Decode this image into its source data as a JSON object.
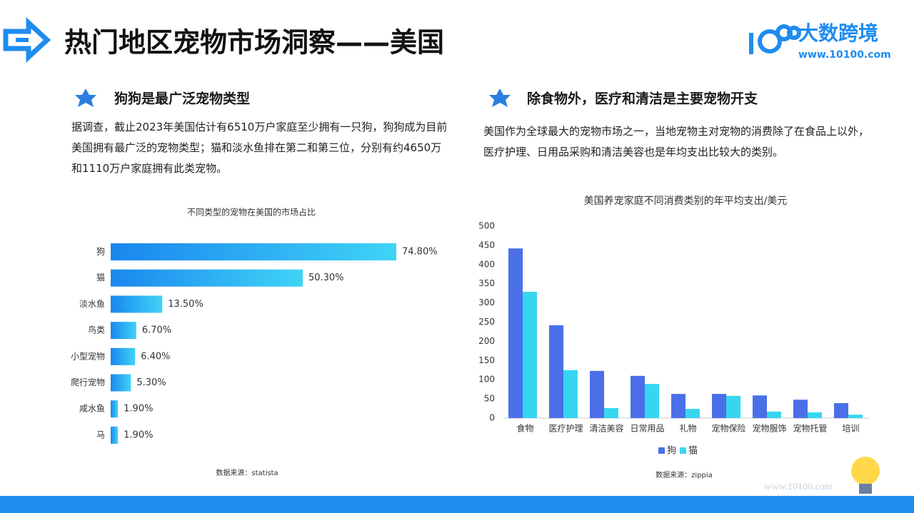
{
  "header": {
    "title": "热门地区宠物市场洞察——美国",
    "logo_name": "大数跨境",
    "logo_url": "www.10100.com",
    "watermark": "www.10100.com"
  },
  "sections": [
    {
      "heading": "狗狗是最广泛宠物类型",
      "body": "据调查，截止2023年美国估计有6510万户家庭至少拥有一只狗，狗狗成为目前美国拥有最广泛的宠物类型；猫和淡水鱼排在第二和第三位，分别有约4650万和1110万户家庭拥有此类宠物。"
    },
    {
      "heading": "除食物外，医疗和清洁是主要宠物开支",
      "body": "美国作为全球最大的宠物市场之一，当地宠物主对宠物的消费除了在食品上以外，医疗护理、日用品采购和清洁美容也是年均支出比较大的类别。"
    }
  ],
  "chart_data": [
    {
      "type": "bar",
      "orientation": "horizontal",
      "title": "不同类型的宠物在美国的市场占比",
      "categories": [
        "狗",
        "猫",
        "淡水鱼",
        "鸟类",
        "小型宠物",
        "爬行宠物",
        "咸水鱼",
        "马"
      ],
      "values": [
        74.8,
        50.3,
        13.5,
        6.7,
        6.4,
        5.3,
        1.9,
        1.9
      ],
      "value_labels": [
        "74.80%",
        "50.30%",
        "13.50%",
        "6.70%",
        "6.40%",
        "5.30%",
        "1.90%",
        "1.90%"
      ],
      "color": [
        "#1a86ee",
        "#3fd4f7"
      ],
      "source": "数据来源：statista"
    },
    {
      "type": "bar",
      "orientation": "vertical",
      "title": "美国养宠家庭不同消费类别的年平均支出/美元",
      "categories": [
        "食物",
        "医疗护理",
        "清洁美容",
        "日常用品",
        "礼物",
        "宠物保险",
        "宠物服饰",
        "宠物托管",
        "培训"
      ],
      "series": [
        {
          "name": "狗",
          "color": "#4a6fe8",
          "values": [
            442,
            242,
            123,
            110,
            63,
            63,
            59,
            48,
            39
          ]
        },
        {
          "name": "猫",
          "color": "#37d6f0",
          "values": [
            329,
            125,
            26,
            89,
            24,
            58,
            17,
            15,
            9
          ]
        }
      ],
      "ylim": [
        0,
        500
      ],
      "yticks": [
        0,
        50,
        100,
        150,
        200,
        250,
        300,
        350,
        400,
        450,
        500
      ],
      "grid": false,
      "legend": "bottom",
      "source": "数据来源：zippia"
    }
  ]
}
